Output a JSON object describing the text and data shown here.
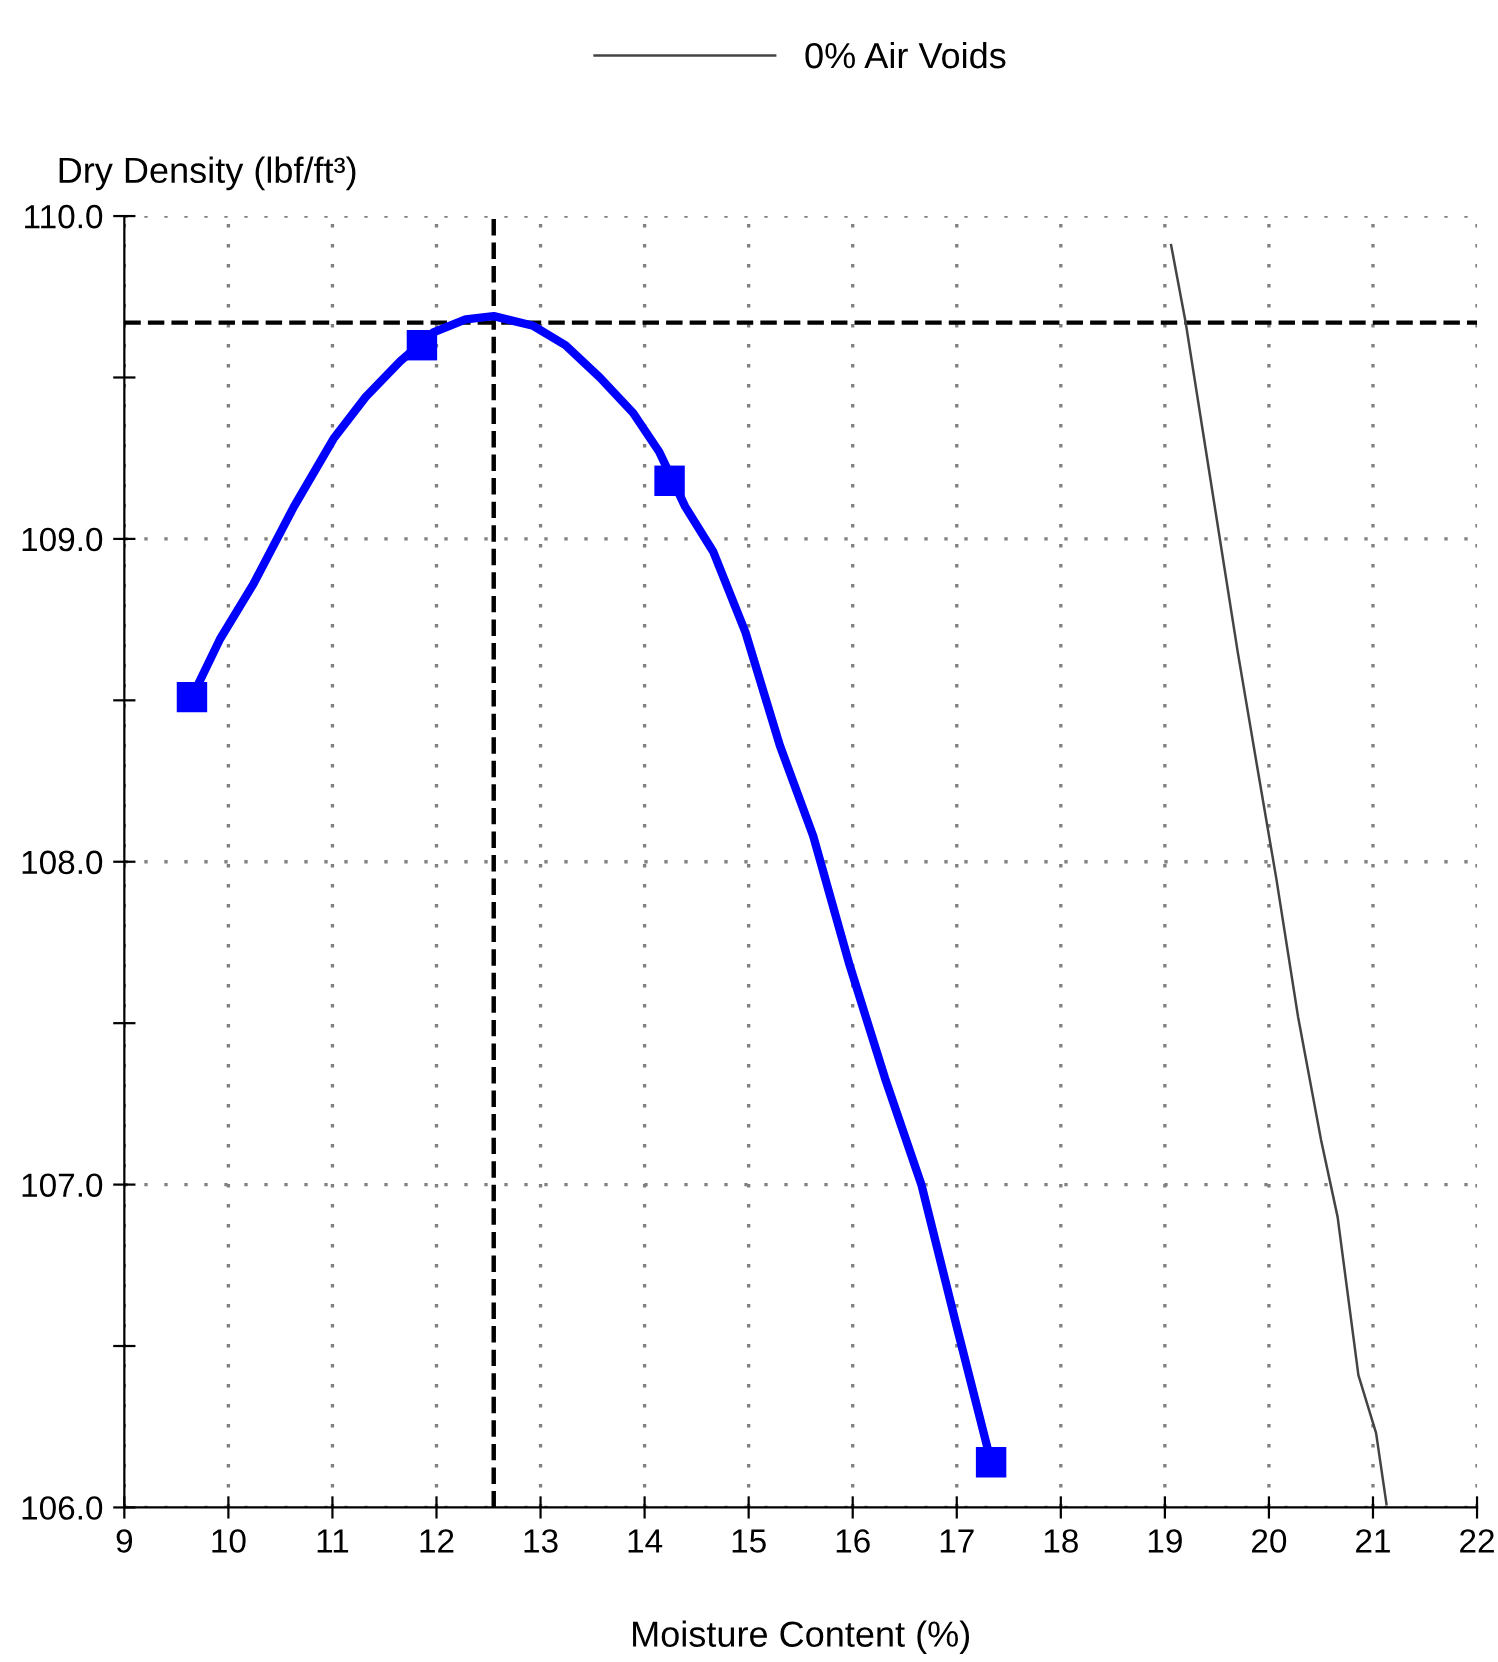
{
  "chart_data": {
    "type": "line",
    "xlabel": "Moisture Content (%)",
    "ylabel": "Dry Density (lbf/ft³)",
    "xlim": [
      9,
      22
    ],
    "xticks": [
      9,
      10,
      11,
      12,
      13,
      14,
      15,
      16,
      17,
      18,
      19,
      20,
      21,
      22
    ],
    "ylim": [
      106.0,
      110.0
    ],
    "yticks": [
      {
        "value": 106.0,
        "label": "106.0"
      },
      {
        "value": 106.5,
        "label": null
      },
      {
        "value": 107.0,
        "label": "107.0"
      },
      {
        "value": 107.5,
        "label": null
      },
      {
        "value": 108.0,
        "label": "108.0"
      },
      {
        "value": 108.5,
        "label": null
      },
      {
        "value": 109.0,
        "label": "109.0"
      },
      {
        "value": 109.5,
        "label": null
      },
      {
        "value": 110.0,
        "label": "110.0"
      }
    ],
    "grid": true,
    "legend": "top",
    "line_style": "solid",
    "ref_lines": [
      {
        "axis": "x",
        "value": 12.55,
        "line_style": "dashed",
        "color": "#000000"
      },
      {
        "axis": "y",
        "value": 109.67,
        "line_style": "dashed",
        "color": "#000000"
      }
    ],
    "series": [
      {
        "color": "#0000ff",
        "marker": "none",
        "x": [
          9.65,
          9.92,
          10.24,
          10.63,
          11.01,
          11.32,
          11.65,
          11.97,
          12.28,
          12.55,
          12.93,
          13.24,
          13.57,
          13.89,
          14.14,
          14.39,
          14.66,
          14.97,
          15.3,
          15.62,
          15.97,
          16.31,
          16.66,
          17.0,
          17.33
        ],
        "values": [
          108.51,
          108.69,
          108.86,
          109.1,
          109.31,
          109.44,
          109.55,
          109.64,
          109.68,
          109.69,
          109.66,
          109.6,
          109.5,
          109.39,
          109.27,
          109.1,
          108.96,
          108.71,
          108.36,
          108.08,
          107.68,
          107.33,
          107.0,
          106.56,
          106.14
        ]
      },
      {
        "type": "scatter",
        "color": "#0000ff",
        "marker": "square",
        "x": [
          9.65,
          11.86,
          14.24,
          17.33
        ],
        "values": [
          108.51,
          109.6,
          109.18,
          106.14
        ]
      },
      {
        "name": "0% Air Voids",
        "color": "#444444",
        "marker": "none",
        "x": [
          19.06,
          19.2,
          19.45,
          19.7,
          19.9,
          20.07,
          20.28,
          20.5,
          20.66,
          20.86,
          21.03,
          21.13
        ],
        "values": [
          109.91,
          109.67,
          109.16,
          108.65,
          108.27,
          107.95,
          107.52,
          107.14,
          106.9,
          106.41,
          106.23,
          106.01
        ]
      }
    ]
  }
}
